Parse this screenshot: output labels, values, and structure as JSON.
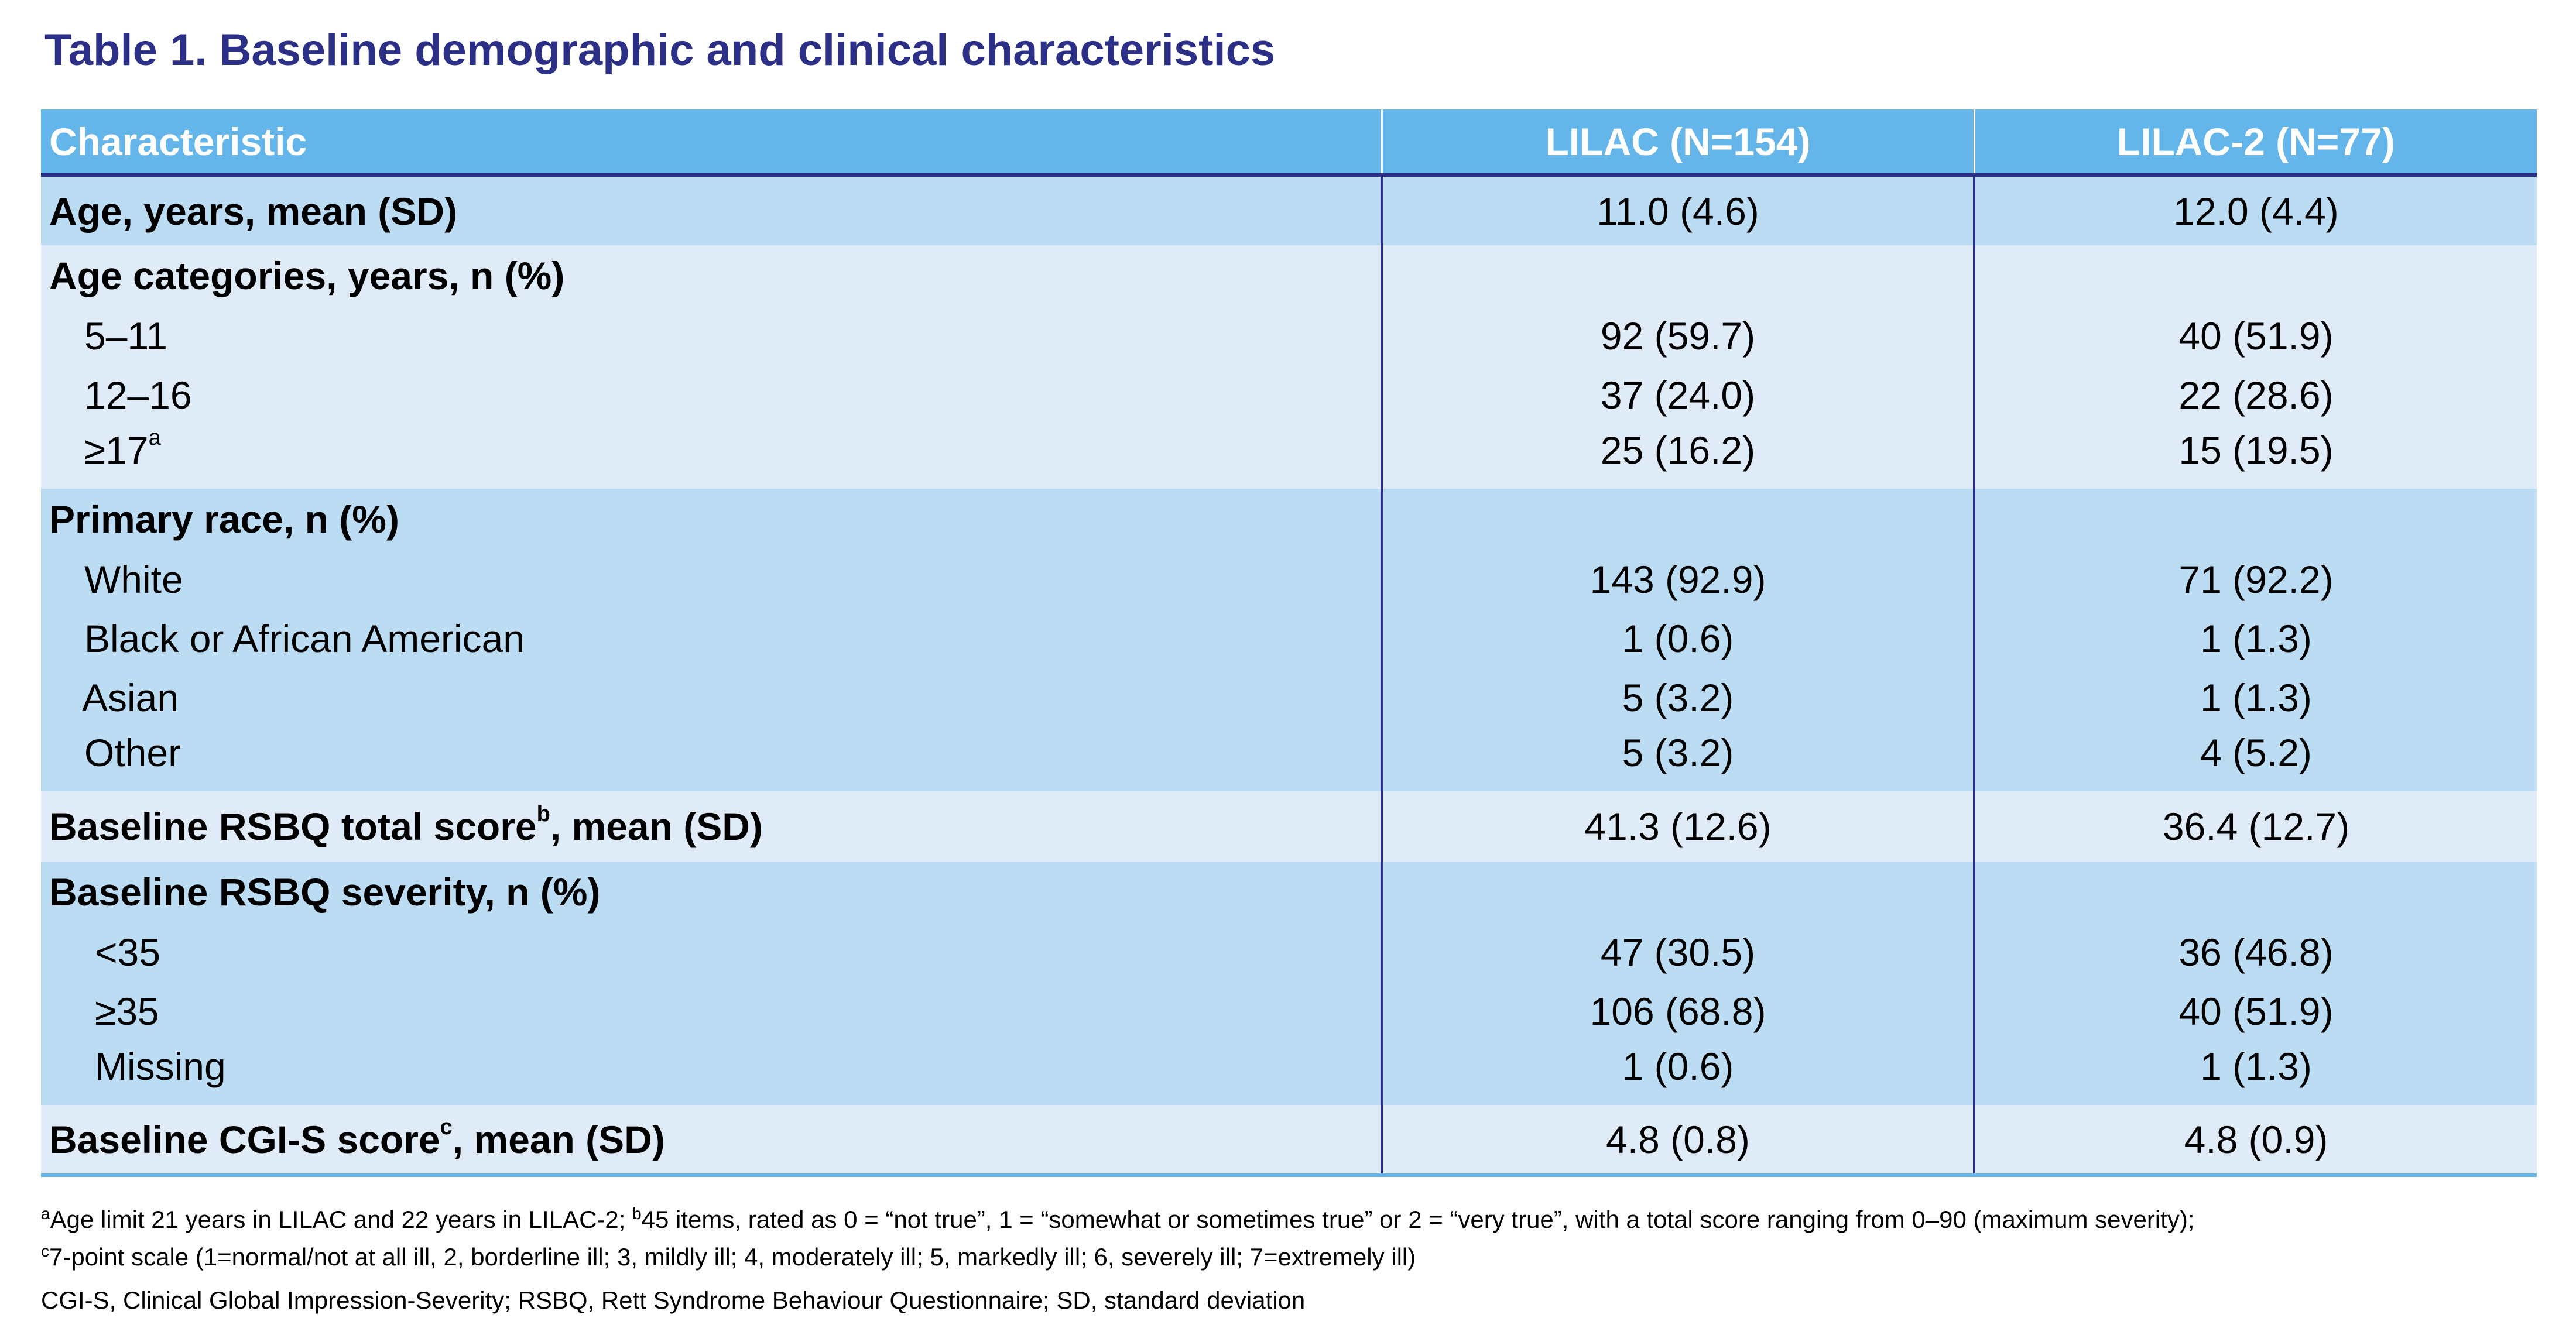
{
  "title": "Table 1. Baseline demographic and clinical characteristics",
  "table": {
    "headers": [
      "Characteristic",
      "LILAC (N=154)",
      "LILAC-2 (N=77)"
    ],
    "rows": {
      "age_mean": {
        "label": "Age, years, mean (SD)",
        "lilac": "11.0 (4.6)",
        "lilac2": "12.0 (4.4)"
      },
      "age_cat": {
        "label": "Age categories, years, n (%)",
        "items": [
          {
            "label": "5–11",
            "sup": "",
            "lilac": "92 (59.7)",
            "lilac2": "40 (51.9)"
          },
          {
            "label": "12–16",
            "sup": "",
            "lilac": "37 (24.0)",
            "lilac2": "22 (28.6)"
          },
          {
            "label": "≥17",
            "sup": "a",
            "lilac": "25 (16.2)",
            "lilac2": "15 (19.5)"
          }
        ]
      },
      "race": {
        "label": "Primary race, n (%)",
        "items": [
          {
            "label": "White",
            "lilac": "143 (92.9)",
            "lilac2": "71 (92.2)"
          },
          {
            "label": "Black or African American",
            "lilac": "1 (0.6)",
            "lilac2": "1 (1.3)"
          },
          {
            "label": "Asian",
            "lilac": "5 (3.2)",
            "lilac2": "1 (1.3)"
          },
          {
            "label": "Other",
            "lilac": "5 (3.2)",
            "lilac2": "4 (5.2)"
          }
        ]
      },
      "rsbq_total": {
        "label_pre": "Baseline RSBQ total score",
        "sup": "b",
        "label_post": ", mean (SD)",
        "lilac": "41.3 (12.6)",
        "lilac2": "36.4 (12.7)"
      },
      "rsbq_sev": {
        "label": "Baseline RSBQ severity, n (%)",
        "items": [
          {
            "label": "<35",
            "lilac": "47 (30.5)",
            "lilac2": "36 (46.8)"
          },
          {
            "label": "≥35",
            "lilac": "106 (68.8)",
            "lilac2": "40 (51.9)"
          },
          {
            "label": "Missing",
            "lilac": "1 (0.6)",
            "lilac2": "1 (1.3)"
          }
        ]
      },
      "cgis": {
        "label_pre": "Baseline CGI-S score",
        "sup": "c",
        "label_post": ", mean (SD)",
        "lilac": "4.8 (0.8)",
        "lilac2": "4.8 (0.9)"
      }
    }
  },
  "footnotes": {
    "line1_sup_a": "a",
    "line1_a": "Age limit 21 years in LILAC and 22 years in LILAC-2; ",
    "line1_sup_b": "b",
    "line1_b": "45 items, rated as 0 = “not true”, 1 = “somewhat or sometimes true” or 2 = “very true”, with a total score ranging from 0–90 (maximum severity);",
    "line2_sup_c": "c",
    "line2_c": "7-point scale (1=normal/not at all ill, 2, borderline ill; 3, mildly ill; 4, moderately ill; 5, markedly ill; 6, severely ill; 7=extremely ill)",
    "line3": "CGI-S, Clinical Global Impression-Severity; RSBQ, Rett Syndrome Behaviour Questionnaire; SD, standard deviation"
  },
  "colors": {
    "title": "#2b2f86",
    "header_bg": "#63b5ea",
    "row_dark": "#bcdcf4",
    "row_light": "#dfecf8",
    "divider": "#2b2f86"
  }
}
